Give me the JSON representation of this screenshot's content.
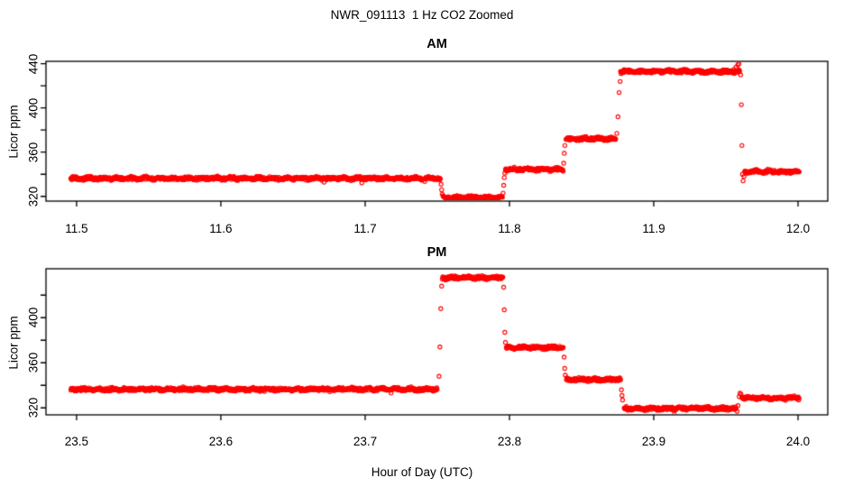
{
  "figure": {
    "title": "NWR_091113  1 Hz CO2 Zoomed",
    "xlabel": "Hour of Day (UTC)",
    "background_color": "#ffffff",
    "axis_color": "#000000",
    "marker": {
      "shape": "open-circle",
      "color": "#ff0000"
    }
  },
  "chart_data": [
    {
      "type": "scatter",
      "title": "AM",
      "ylabel": "Licor ppm",
      "xlim": [
        11.4788,
        12.0206
      ],
      "ylim": [
        315.7,
        442.2
      ],
      "xtick_values": [
        11.5,
        11.6,
        11.7,
        11.8,
        11.9,
        12.0
      ],
      "xtick_labels": [
        "11.5",
        "11.6",
        "11.7",
        "11.8",
        "11.9",
        "12.0"
      ],
      "ytick_labeled_values": [
        320,
        360,
        400,
        440
      ],
      "ytick_labels": [
        "320",
        "360",
        "400",
        "440"
      ],
      "ytick_minor_values": [
        340,
        380,
        420
      ],
      "segments": [
        {
          "t_start": 11.496,
          "t_end": 11.7522,
          "value": 336.3
        },
        {
          "t_start": 11.754,
          "t_end": 11.7952,
          "value": 319.0
        },
        {
          "t_start": 11.7972,
          "t_end": 11.8372,
          "value": 344.5
        },
        {
          "t_start": 11.8392,
          "t_end": 11.8738,
          "value": 372.0
        },
        {
          "t_start": 11.877,
          "t_end": 11.9595,
          "value": 433.0
        },
        {
          "t_start": 11.963,
          "t_end": 12.001,
          "value": 342.5
        }
      ],
      "transition_points": [
        [
          11.7526,
          331
        ],
        [
          11.753,
          326
        ],
        [
          11.7534,
          322
        ],
        [
          11.7956,
          323
        ],
        [
          11.796,
          330
        ],
        [
          11.7964,
          337
        ],
        [
          11.7968,
          341
        ],
        [
          11.8376,
          350
        ],
        [
          11.838,
          359
        ],
        [
          11.8384,
          366
        ],
        [
          11.8744,
          377
        ],
        [
          11.8752,
          392
        ],
        [
          11.876,
          414
        ],
        [
          11.8767,
          424
        ],
        [
          11.8774,
          431
        ],
        [
          11.9555,
          435
        ],
        [
          11.957,
          437
        ],
        [
          11.9582,
          439
        ],
        [
          11.959,
          440
        ],
        [
          11.9602,
          430
        ],
        [
          11.9607,
          403
        ],
        [
          11.9611,
          366
        ],
        [
          11.9615,
          340
        ],
        [
          11.9619,
          334
        ],
        [
          11.9625,
          338
        ]
      ]
    },
    {
      "type": "scatter",
      "title": "PM",
      "ylabel": "Licor ppm",
      "xlim": [
        23.4788,
        24.0206
      ],
      "ylim": [
        313.8,
        443.4
      ],
      "xtick_values": [
        23.5,
        23.6,
        23.7,
        23.8,
        23.9,
        24.0
      ],
      "xtick_labels": [
        "23.5",
        "23.6",
        "23.7",
        "23.8",
        "23.9",
        "24.0"
      ],
      "ytick_labeled_values": [
        320,
        360,
        400
      ],
      "ytick_labels": [
        "320",
        "360",
        "400"
      ],
      "ytick_minor_values": [
        340,
        380,
        420
      ],
      "segments": [
        {
          "t_start": 23.496,
          "t_end": 23.75,
          "value": 336.5
        },
        {
          "t_start": 23.7535,
          "t_end": 23.7955,
          "value": 435.5
        },
        {
          "t_start": 23.7978,
          "t_end": 23.8375,
          "value": 373.5
        },
        {
          "t_start": 23.8395,
          "t_end": 23.8772,
          "value": 345.0
        },
        {
          "t_start": 23.8795,
          "t_end": 23.9572,
          "value": 319.5
        },
        {
          "t_start": 23.961,
          "t_end": 24.001,
          "value": 328.8
        }
      ],
      "transition_points": [
        [
          23.7512,
          348
        ],
        [
          23.7518,
          374
        ],
        [
          23.7524,
          408
        ],
        [
          23.753,
          428
        ],
        [
          23.796,
          427
        ],
        [
          23.7964,
          407
        ],
        [
          23.7968,
          387
        ],
        [
          23.7972,
          378
        ],
        [
          23.8379,
          365
        ],
        [
          23.8383,
          355
        ],
        [
          23.8387,
          349
        ],
        [
          23.8776,
          336
        ],
        [
          23.878,
          331
        ],
        [
          23.8784,
          327
        ],
        [
          23.9578,
          317
        ],
        [
          23.9584,
          322
        ],
        [
          23.9592,
          330
        ],
        [
          23.9598,
          333
        ],
        [
          23.9605,
          332
        ]
      ]
    }
  ]
}
